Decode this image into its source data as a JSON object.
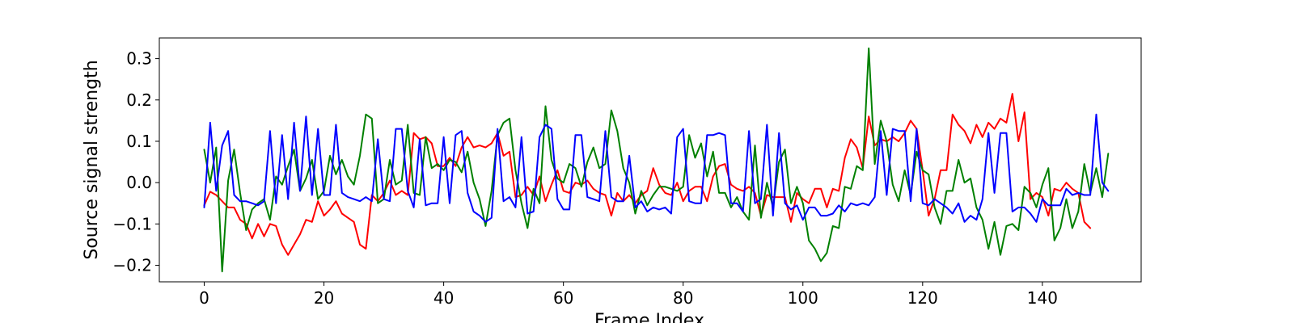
{
  "chart_data": {
    "type": "line",
    "title": "",
    "xlabel": "Frame Index",
    "ylabel": "Source signal strength",
    "xlim": [
      -7.5,
      156.5
    ],
    "ylim": [
      -0.24,
      0.35
    ],
    "xticks": [
      0,
      20,
      40,
      60,
      80,
      100,
      120,
      140
    ],
    "yticks": [
      -0.2,
      -0.1,
      0.0,
      0.1,
      0.2,
      0.3
    ],
    "ytick_labels": [
      "−0.2",
      "−0.1",
      "0.0",
      "0.1",
      "0.2",
      "0.3"
    ],
    "grid": false,
    "legend": "none",
    "series": [
      {
        "color": "#ff0000",
        "values": [
          -0.055,
          -0.022,
          -0.03,
          -0.045,
          -0.06,
          -0.06,
          -0.09,
          -0.1,
          -0.135,
          -0.1,
          -0.13,
          -0.1,
          -0.105,
          -0.15,
          -0.175,
          -0.15,
          -0.125,
          -0.09,
          -0.095,
          -0.045,
          -0.08,
          -0.065,
          -0.045,
          -0.075,
          -0.085,
          -0.095,
          -0.15,
          -0.16,
          -0.03,
          -0.045,
          -0.025,
          0.005,
          -0.03,
          -0.02,
          -0.03,
          0.12,
          0.105,
          0.11,
          0.095,
          0.04,
          0.04,
          0.06,
          0.04,
          0.085,
          0.11,
          0.085,
          0.09,
          0.085,
          0.095,
          0.12,
          0.065,
          0.075,
          -0.035,
          -0.03,
          -0.01,
          -0.03,
          0.015,
          -0.045,
          -0.005,
          0.03,
          -0.02,
          -0.025,
          0.0,
          -0.005,
          0.005,
          -0.015,
          -0.025,
          -0.03,
          -0.08,
          -0.025,
          -0.045,
          -0.03,
          -0.05,
          -0.03,
          -0.02,
          0.035,
          -0.005,
          -0.025,
          -0.03,
          0.0,
          -0.045,
          -0.02,
          -0.01,
          -0.01,
          -0.045,
          0.015,
          0.04,
          0.045,
          -0.005,
          -0.015,
          -0.02,
          -0.01,
          -0.025,
          -0.08,
          -0.03,
          -0.035,
          -0.035,
          -0.035,
          -0.095,
          -0.025,
          -0.04,
          -0.05,
          -0.015,
          -0.015,
          -0.06,
          -0.015,
          -0.02,
          0.06,
          0.105,
          0.085,
          0.035,
          0.16,
          0.09,
          0.105,
          0.1,
          0.11,
          0.1,
          0.12,
          0.15,
          0.13,
          0.03,
          -0.08,
          -0.04,
          0.03,
          0.03,
          0.165,
          0.14,
          0.125,
          0.095,
          0.14,
          0.11,
          0.145,
          0.13,
          0.155,
          0.145,
          0.215,
          0.1,
          0.17,
          -0.04,
          -0.025,
          -0.035,
          -0.08,
          -0.015,
          -0.02,
          0.0,
          -0.015,
          -0.025,
          -0.095,
          -0.11
        ]
      },
      {
        "color": "#008000",
        "values": [
          0.08,
          0.0,
          0.085,
          -0.215,
          0.005,
          0.08,
          -0.025,
          -0.115,
          -0.065,
          -0.05,
          -0.04,
          -0.09,
          0.015,
          -0.005,
          0.04,
          0.08,
          -0.02,
          0.01,
          0.055,
          -0.04,
          -0.02,
          0.065,
          0.02,
          0.055,
          0.015,
          -0.005,
          0.065,
          0.165,
          0.155,
          -0.05,
          -0.04,
          0.055,
          -0.005,
          0.005,
          0.14,
          -0.025,
          -0.03,
          0.11,
          0.035,
          0.045,
          0.03,
          0.055,
          0.05,
          0.025,
          0.075,
          0.0,
          -0.04,
          -0.105,
          -0.02,
          0.115,
          0.145,
          0.155,
          0.03,
          -0.05,
          -0.11,
          -0.015,
          -0.05,
          0.185,
          0.055,
          0.01,
          0.0,
          0.045,
          0.035,
          -0.01,
          0.05,
          0.085,
          0.035,
          0.045,
          0.175,
          0.125,
          0.035,
          0.0,
          -0.075,
          -0.02,
          -0.055,
          -0.03,
          -0.01,
          -0.01,
          -0.015,
          -0.02,
          -0.01,
          0.115,
          0.06,
          0.095,
          0.015,
          0.075,
          -0.025,
          -0.025,
          -0.06,
          -0.035,
          -0.07,
          -0.09,
          0.09,
          -0.085,
          0.0,
          -0.06,
          0.05,
          0.08,
          -0.05,
          -0.01,
          -0.05,
          -0.14,
          -0.16,
          -0.19,
          -0.17,
          -0.105,
          -0.11,
          -0.01,
          -0.015,
          0.04,
          0.03,
          0.325,
          0.045,
          0.15,
          0.1,
          -0.005,
          -0.045,
          0.03,
          -0.03,
          0.075,
          0.03,
          0.02,
          -0.06,
          -0.1,
          -0.02,
          -0.02,
          0.055,
          0.0,
          0.01,
          -0.06,
          -0.09,
          -0.16,
          -0.095,
          -0.175,
          -0.105,
          -0.1,
          -0.115,
          -0.01,
          -0.025,
          -0.06,
          -0.005,
          0.035,
          -0.14,
          -0.11,
          -0.04,
          -0.11,
          -0.07,
          0.045,
          -0.025,
          0.035,
          -0.035,
          0.07
        ]
      },
      {
        "color": "#0000ff",
        "values": [
          -0.06,
          0.145,
          -0.02,
          0.09,
          0.125,
          -0.03,
          -0.045,
          -0.045,
          -0.05,
          -0.055,
          -0.045,
          0.125,
          -0.05,
          0.115,
          -0.04,
          0.145,
          -0.02,
          0.16,
          -0.03,
          0.13,
          -0.03,
          -0.03,
          0.14,
          -0.025,
          -0.035,
          -0.04,
          -0.045,
          -0.035,
          -0.045,
          0.105,
          -0.04,
          -0.045,
          0.13,
          0.13,
          -0.02,
          -0.06,
          0.105,
          -0.055,
          -0.05,
          -0.05,
          0.11,
          -0.05,
          0.115,
          0.125,
          -0.025,
          -0.07,
          -0.08,
          -0.095,
          -0.085,
          0.13,
          -0.045,
          -0.035,
          -0.06,
          0.11,
          -0.075,
          -0.07,
          0.11,
          0.14,
          0.13,
          -0.04,
          -0.065,
          -0.065,
          0.115,
          0.115,
          -0.035,
          -0.04,
          -0.045,
          0.125,
          -0.035,
          -0.045,
          -0.045,
          0.065,
          -0.06,
          -0.045,
          -0.07,
          -0.06,
          -0.065,
          -0.06,
          -0.075,
          0.11,
          0.13,
          -0.045,
          -0.05,
          -0.05,
          0.115,
          0.115,
          0.12,
          0.115,
          -0.05,
          -0.05,
          -0.07,
          0.125,
          -0.05,
          -0.04,
          0.14,
          -0.08,
          0.12,
          -0.05,
          -0.065,
          -0.055,
          -0.09,
          -0.06,
          -0.06,
          -0.08,
          -0.08,
          -0.075,
          -0.055,
          -0.07,
          -0.05,
          -0.055,
          -0.05,
          -0.055,
          -0.035,
          0.125,
          -0.03,
          0.13,
          0.125,
          0.125,
          -0.045,
          0.13,
          -0.05,
          -0.055,
          -0.04,
          -0.05,
          -0.06,
          -0.075,
          -0.05,
          -0.095,
          -0.08,
          -0.09,
          -0.04,
          0.12,
          -0.025,
          0.12,
          0.12,
          -0.07,
          -0.06,
          -0.06,
          -0.075,
          -0.095,
          -0.04,
          -0.055,
          -0.055,
          -0.055,
          -0.015,
          -0.03,
          -0.025,
          -0.03,
          -0.03,
          0.165,
          0.0,
          -0.02
        ]
      }
    ]
  }
}
